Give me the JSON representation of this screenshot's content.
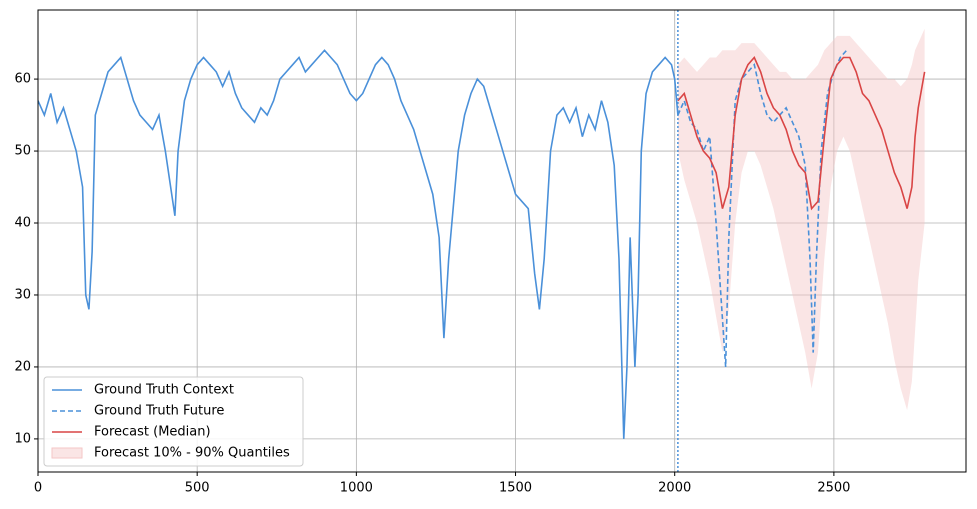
{
  "chart_data": {
    "type": "line",
    "xlim": [
      0,
      2915
    ],
    "ylim": [
      5.4,
      69.6
    ],
    "xticks": [
      0,
      500,
      1000,
      1500,
      2000,
      2500
    ],
    "yticks": [
      10,
      20,
      30,
      40,
      50,
      60
    ],
    "grid": true,
    "legend": "lower-left",
    "split_x": 2010,
    "series": [
      {
        "name": "Ground Truth Context",
        "color": "#4a90d9",
        "dashed": false,
        "x": [
          0,
          20,
          40,
          60,
          80,
          100,
          120,
          140,
          150,
          160,
          170,
          180,
          200,
          220,
          240,
          260,
          280,
          300,
          320,
          340,
          360,
          380,
          400,
          420,
          430,
          440,
          460,
          480,
          500,
          520,
          540,
          560,
          580,
          600,
          620,
          640,
          660,
          680,
          700,
          720,
          740,
          760,
          780,
          800,
          820,
          840,
          860,
          880,
          900,
          920,
          940,
          960,
          980,
          1000,
          1020,
          1040,
          1060,
          1080,
          1100,
          1120,
          1140,
          1160,
          1180,
          1200,
          1220,
          1240,
          1260,
          1275,
          1290,
          1300,
          1320,
          1340,
          1360,
          1380,
          1400,
          1420,
          1440,
          1460,
          1480,
          1500,
          1520,
          1540,
          1560,
          1575,
          1590,
          1610,
          1630,
          1650,
          1670,
          1690,
          1710,
          1730,
          1750,
          1770,
          1790,
          1810,
          1825,
          1840,
          1850,
          1860,
          1875,
          1885,
          1895,
          1910,
          1930,
          1950,
          1970,
          1990,
          2000,
          2010
        ],
        "values": [
          57,
          55,
          58,
          54,
          56,
          53,
          50,
          45,
          30,
          28,
          36,
          55,
          58,
          61,
          62,
          63,
          60,
          57,
          55,
          54,
          53,
          55,
          50,
          44,
          41,
          50,
          57,
          60,
          62,
          63,
          62,
          61,
          59,
          61,
          58,
          56,
          55,
          54,
          56,
          55,
          57,
          60,
          61,
          62,
          63,
          61,
          62,
          63,
          64,
          63,
          62,
          60,
          58,
          57,
          58,
          60,
          62,
          63,
          62,
          60,
          57,
          55,
          53,
          50,
          47,
          44,
          38,
          24,
          35,
          40,
          50,
          55,
          58,
          60,
          59,
          56,
          53,
          50,
          47,
          44,
          43,
          42,
          33,
          28,
          35,
          50,
          55,
          56,
          54,
          56,
          52,
          55,
          53,
          57,
          54,
          48,
          35,
          10,
          20,
          38,
          20,
          30,
          50,
          58,
          61,
          62,
          63,
          62,
          60,
          55
        ]
      },
      {
        "name": "Ground Truth Future",
        "color": "#4a90d9",
        "dashed": true,
        "x": [
          2010,
          2030,
          2050,
          2070,
          2090,
          2110,
          2130,
          2145,
          2160,
          2170,
          2190,
          2210,
          2230,
          2250,
          2270,
          2290,
          2310,
          2330,
          2350,
          2370,
          2390,
          2410,
          2425,
          2435,
          2445,
          2460,
          2480,
          2500,
          2520,
          2540
        ],
        "values": [
          55,
          57,
          54,
          53,
          50,
          52,
          40,
          30,
          20,
          38,
          57,
          60,
          61,
          62,
          58,
          55,
          54,
          55,
          56,
          54,
          52,
          48,
          35,
          22,
          35,
          50,
          58,
          61,
          63,
          64
        ]
      },
      {
        "name": "Forecast (Median)",
        "color": "#d94545",
        "dashed": false,
        "x": [
          2010,
          2030,
          2050,
          2070,
          2090,
          2110,
          2130,
          2150,
          2170,
          2190,
          2210,
          2230,
          2250,
          2270,
          2290,
          2310,
          2330,
          2350,
          2370,
          2390,
          2410,
          2430,
          2450,
          2470,
          2490,
          2510,
          2530,
          2550,
          2570,
          2590,
          2610,
          2630,
          2650,
          2670,
          2690,
          2710,
          2730,
          2745,
          2755,
          2765,
          2785
        ],
        "values": [
          57,
          58,
          55,
          52,
          50,
          49,
          47,
          42,
          45,
          55,
          60,
          62,
          63,
          61,
          58,
          56,
          55,
          53,
          50,
          48,
          47,
          42,
          43,
          52,
          60,
          62,
          63,
          63,
          61,
          58,
          57,
          55,
          53,
          50,
          47,
          45,
          42,
          45,
          52,
          56,
          61
        ]
      },
      {
        "name": "Forecast 10% - 90% Quantiles",
        "color": "#f4c6c6",
        "x": [
          2010,
          2030,
          2050,
          2070,
          2090,
          2110,
          2130,
          2150,
          2170,
          2190,
          2210,
          2230,
          2250,
          2270,
          2290,
          2310,
          2330,
          2350,
          2370,
          2390,
          2410,
          2430,
          2450,
          2470,
          2490,
          2510,
          2530,
          2550,
          2570,
          2590,
          2610,
          2630,
          2650,
          2670,
          2690,
          2710,
          2730,
          2745,
          2755,
          2765,
          2785
        ],
        "lower": [
          50,
          46,
          43,
          40,
          36,
          32,
          27,
          22,
          28,
          40,
          47,
          50,
          50,
          48,
          45,
          42,
          38,
          34,
          30,
          26,
          22,
          17,
          22,
          35,
          45,
          50,
          52,
          50,
          46,
          42,
          38,
          34,
          30,
          26,
          21,
          17,
          14,
          18,
          25,
          32,
          40
        ],
        "upper": [
          62,
          63,
          62,
          61,
          62,
          63,
          63,
          64,
          64,
          64,
          65,
          65,
          65,
          64,
          63,
          62,
          61,
          61,
          60,
          60,
          60,
          61,
          62,
          64,
          65,
          66,
          66,
          66,
          65,
          64,
          63,
          62,
          61,
          60,
          60,
          59,
          60,
          62,
          64,
          65,
          67
        ]
      }
    ]
  }
}
